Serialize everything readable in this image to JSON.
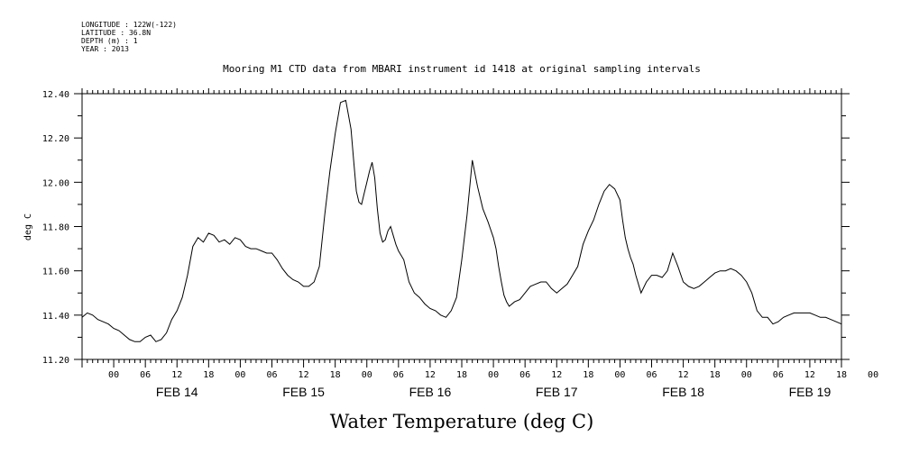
{
  "header": {
    "longitude": "LONGITUDE : 122W(-122)",
    "latitude": "LATITUDE : 36.8N",
    "depth": "DEPTH (m) : 1",
    "year": "YEAR : 2013"
  },
  "chart_data": {
    "type": "line",
    "title": "Mooring M1 CTD data from MBARI instrument id 1418 at original sampling intervals",
    "xlabel": "Water Temperature (deg C)",
    "ylabel": "deg C",
    "ylim": [
      11.2,
      12.4
    ],
    "yticks": [
      "11.20",
      "11.40",
      "11.60",
      "11.80",
      "12.00",
      "12.20",
      "12.40"
    ],
    "x_range_hours": [
      -6,
      138
    ],
    "x_tick_labels": [
      "00",
      "06",
      "12",
      "18",
      "00",
      "06",
      "12",
      "18",
      "00",
      "06",
      "12",
      "18",
      "00",
      "06",
      "12",
      "18",
      "00",
      "06",
      "12",
      "18",
      "00",
      "06",
      "12",
      "18",
      "00"
    ],
    "day_labels": [
      "FEB 14",
      "FEB 15",
      "FEB 16",
      "FEB 17",
      "FEB 18",
      "FEB 19"
    ],
    "grid": false,
    "series": [
      {
        "x": [
          -6,
          -5,
          -4,
          -3,
          -2,
          -1,
          0,
          1,
          2,
          3,
          4,
          5,
          6,
          7,
          8,
          9,
          10,
          11,
          12,
          13,
          14,
          15,
          16,
          17,
          18,
          19,
          20,
          21,
          22,
          23,
          24,
          25,
          26,
          27,
          28,
          29,
          30,
          31,
          32,
          33,
          34,
          35,
          36,
          37,
          38,
          39,
          40,
          41,
          42,
          43,
          44,
          45,
          45.5,
          46,
          46.5,
          47,
          47.5,
          48,
          48.5,
          49,
          49.5,
          50,
          50.5,
          51,
          51.5,
          52,
          52.5,
          53,
          53.5,
          54,
          55,
          56,
          57,
          58,
          59,
          60,
          61,
          62,
          63,
          64,
          65,
          66,
          67,
          68,
          69,
          70,
          71,
          72,
          72.5,
          73,
          73.5,
          74,
          74.5,
          75,
          76,
          77,
          78,
          79,
          80,
          81,
          82,
          83,
          84,
          85,
          86,
          87,
          88,
          89,
          90,
          91,
          92,
          93,
          94,
          95,
          96,
          96.5,
          97,
          97.5,
          98,
          98.5,
          99,
          100,
          101,
          102,
          103,
          104,
          105,
          106,
          107,
          108,
          109,
          110,
          111,
          112,
          113,
          114,
          115,
          116,
          117,
          118,
          119,
          120,
          121,
          122,
          123,
          124,
          125,
          126,
          127,
          128,
          129,
          130,
          131,
          132,
          133,
          134,
          135,
          136,
          137,
          138
        ],
        "values": [
          11.39,
          11.41,
          11.4,
          11.38,
          11.37,
          11.36,
          11.34,
          11.33,
          11.31,
          11.29,
          11.28,
          11.28,
          11.3,
          11.31,
          11.28,
          11.29,
          11.32,
          11.38,
          11.42,
          11.48,
          11.58,
          11.71,
          11.75,
          11.73,
          11.77,
          11.76,
          11.73,
          11.74,
          11.72,
          11.75,
          11.74,
          11.71,
          11.7,
          11.7,
          11.69,
          11.68,
          11.68,
          11.65,
          11.61,
          11.58,
          11.56,
          11.55,
          11.53,
          11.53,
          11.55,
          11.62,
          11.85,
          12.05,
          12.22,
          12.36,
          12.37,
          12.24,
          12.1,
          11.96,
          11.91,
          11.9,
          11.95,
          12.0,
          12.05,
          12.09,
          12.02,
          11.88,
          11.77,
          11.73,
          11.74,
          11.78,
          11.8,
          11.76,
          11.72,
          11.69,
          11.65,
          11.55,
          11.5,
          11.48,
          11.45,
          11.43,
          11.42,
          11.4,
          11.39,
          11.42,
          11.48,
          11.65,
          11.85,
          12.1,
          11.98,
          11.88,
          11.82,
          11.75,
          11.7,
          11.62,
          11.55,
          11.49,
          11.46,
          11.44,
          11.46,
          11.47,
          11.5,
          11.53,
          11.54,
          11.55,
          11.55,
          11.52,
          11.5,
          11.52,
          11.54,
          11.58,
          11.62,
          11.72,
          11.78,
          11.83,
          11.9,
          11.96,
          11.99,
          11.97,
          11.92,
          11.83,
          11.75,
          11.7,
          11.66,
          11.63,
          11.58,
          11.5,
          11.55,
          11.58,
          11.58,
          11.57,
          11.6,
          11.68,
          11.62,
          11.55,
          11.53,
          11.52,
          11.53,
          11.55,
          11.57,
          11.59,
          11.6,
          11.6,
          11.61,
          11.6,
          11.58,
          11.55,
          11.5,
          11.42,
          11.39,
          11.39,
          11.36,
          11.37,
          11.39,
          11.4,
          11.41,
          11.41,
          11.41,
          11.41,
          11.4,
          11.39,
          11.39,
          11.38,
          11.37,
          11.36
        ]
      }
    ]
  }
}
